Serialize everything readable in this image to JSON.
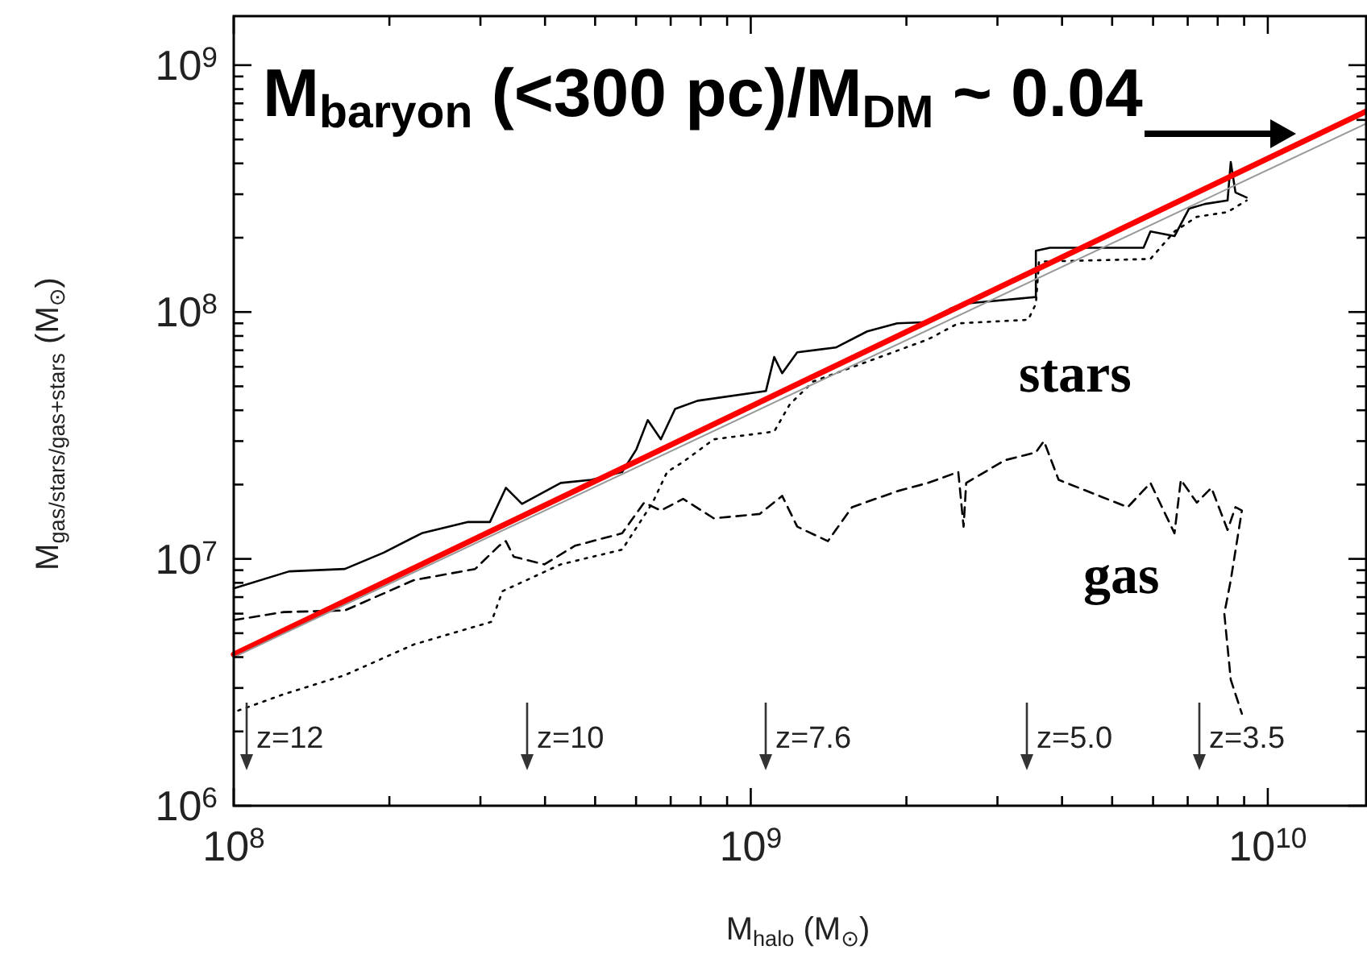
{
  "chart_data": {
    "type": "line",
    "xlabel": "M$_{halo}$ (M$_{⊙}$)",
    "ylabel": "M$_{gas/stars/gas+stars}$ (M$_{⊙}$)",
    "log": "xy",
    "grid": false,
    "marker": "none",
    "xlim": [
      100000000.0,
      15500000000.0
    ],
    "ylim": [
      1000000.0,
      1580000000.0
    ],
    "xticks": [
      {
        "value": 100000000.0,
        "label": "10$^{8}$"
      },
      {
        "value": 200000000.0,
        "label": null
      },
      {
        "value": 300000000.0,
        "label": null
      },
      {
        "value": 400000000.0,
        "label": null
      },
      {
        "value": 500000000.0,
        "label": null
      },
      {
        "value": 600000000.0,
        "label": null
      },
      {
        "value": 700000000.0,
        "label": null
      },
      {
        "value": 800000000.0,
        "label": null
      },
      {
        "value": 900000000.0,
        "label": null
      },
      {
        "value": 1000000000.0,
        "label": "10$^{9}$"
      },
      {
        "value": 2000000000.0,
        "label": null
      },
      {
        "value": 3000000000.0,
        "label": null
      },
      {
        "value": 4000000000.0,
        "label": null
      },
      {
        "value": 5000000000.0,
        "label": null
      },
      {
        "value": 6000000000.0,
        "label": null
      },
      {
        "value": 7000000000.0,
        "label": null
      },
      {
        "value": 8000000000.0,
        "label": null
      },
      {
        "value": 9000000000.0,
        "label": null
      },
      {
        "value": 10000000000.0,
        "label": "10$^{10}$"
      }
    ],
    "yticks": [
      {
        "value": 1000000.0,
        "label": "10$^{6}$"
      },
      {
        "value": 2000000.0,
        "label": null
      },
      {
        "value": 3000000.0,
        "label": null
      },
      {
        "value": 4000000.0,
        "label": null
      },
      {
        "value": 5000000.0,
        "label": null
      },
      {
        "value": 6000000.0,
        "label": null
      },
      {
        "value": 7000000.0,
        "label": null
      },
      {
        "value": 8000000.0,
        "label": null
      },
      {
        "value": 9000000.0,
        "label": null
      },
      {
        "value": 10000000.0,
        "label": "10$^{7}$"
      },
      {
        "value": 20000000.0,
        "label": null
      },
      {
        "value": 30000000.0,
        "label": null
      },
      {
        "value": 40000000.0,
        "label": null
      },
      {
        "value": 50000000.0,
        "label": null
      },
      {
        "value": 60000000.0,
        "label": null
      },
      {
        "value": 70000000.0,
        "label": null
      },
      {
        "value": 80000000.0,
        "label": null
      },
      {
        "value": 90000000.0,
        "label": null
      },
      {
        "value": 100000000.0,
        "label": "10$^{8}$"
      },
      {
        "value": 200000000.0,
        "label": null
      },
      {
        "value": 300000000.0,
        "label": null
      },
      {
        "value": 400000000.0,
        "label": null
      },
      {
        "value": 500000000.0,
        "label": null
      },
      {
        "value": 600000000.0,
        "label": null
      },
      {
        "value": 700000000.0,
        "label": null
      },
      {
        "value": 800000000.0,
        "label": null
      },
      {
        "value": 900000000.0,
        "label": null
      },
      {
        "value": 1000000000.0,
        "label": "10$^{9}$"
      }
    ],
    "series": [
      {
        "color": "#000000",
        "line_style": "solid",
        "x": [
          100000000.0,
          128000000.0,
          164000000.0,
          195000000.0,
          231000000.0,
          283000000.0,
          313000000.0,
          336000000.0,
          361000000.0,
          429000000.0,
          492000000.0,
          564000000.0,
          601000000.0,
          632000000.0,
          670000000.0,
          714000000.0,
          789000000.0,
          1070000000.0,
          1110000000.0,
          1150000000.0,
          1230000000.0,
          1460000000.0,
          1680000000.0,
          1920000000.0,
          2200000000.0,
          2430000000.0,
          2580000000.0,
          3560000000.0,
          3560000000.0,
          3790000000.0,
          5750000000.0,
          5930000000.0,
          6600000000.0,
          7040000000.0,
          7560000000.0,
          8360000000.0,
          8480000000.0,
          8660000000.0,
          9100000000.0
        ],
        "values": [
          7600000.0,
          8900000.0,
          9100000.0,
          10600000.0,
          12700000.0,
          14100000.0,
          14100000.0,
          19400000.0,
          16700000.0,
          20300000.0,
          20900000.0,
          22500000.0,
          27800000.0,
          36500000.0,
          30500000.0,
          40500000.0,
          43700000.0,
          47900000.0,
          65700000.0,
          56500000.0,
          68700000.0,
          71800000.0,
          83500000.0,
          90000000.0,
          91000000.0,
          103000000.0,
          108000000.0,
          115000000.0,
          177000000.0,
          182000000.0,
          182000000.0,
          212000000.0,
          203000000.0,
          262000000.0,
          274000000.0,
          283000000.0,
          405000000.0,
          305000000.0,
          291000000.0
        ]
      },
      {
        "name": "stars",
        "color": "#000000",
        "line_style": "dotted",
        "x": [
          102000000.0,
          125000000.0,
          164000000.0,
          223000000.0,
          315000000.0,
          331000000.0,
          429000000.0,
          564000000.0,
          646000000.0,
          689000000.0,
          740000000.0,
          848000000.0,
          1110000000.0,
          1190000000.0,
          1320000000.0,
          2200000000.0,
          2520000000.0,
          3440000000.0,
          3560000000.0,
          3610000000.0,
          5930000000.0,
          6600000000.0,
          7290000000.0,
          8360000000.0,
          9100000000.0
        ],
        "values": [
          2430000.0,
          2830000.0,
          3380000.0,
          4500000.0,
          5560000.0,
          7400000.0,
          9500000.0,
          10900000.0,
          16900000.0,
          22500000.0,
          24700000.0,
          30500000.0,
          32800000.0,
          42300000.0,
          52300000.0,
          77400000.0,
          90000000.0,
          93000000.0,
          108000000.0,
          160000000.0,
          164000000.0,
          212000000.0,
          243000000.0,
          254000000.0,
          283000000.0
        ]
      },
      {
        "name": "gas",
        "color": "#000000",
        "line_style": "dashed",
        "x": [
          100000000.0,
          125000000.0,
          164000000.0,
          223000000.0,
          293000000.0,
          326000000.0,
          336000000.0,
          348000000.0,
          399000000.0,
          457000000.0,
          564000000.0,
          622000000.0,
          670000000.0,
          740000000.0,
          848000000.0,
          1040000000.0,
          1150000000.0,
          1230000000.0,
          1410000000.0,
          1570000000.0,
          1920000000.0,
          2200000000.0,
          2520000000.0,
          2580000000.0,
          2610000000.0,
          3100000000.0,
          3560000000.0,
          3690000000.0,
          3940000000.0,
          5360000000.0,
          5930000000.0,
          6600000000.0,
          6790000000.0,
          7290000000.0,
          7780000000.0,
          8360000000.0,
          8660000000.0,
          8910000000.0,
          8480000000.0,
          8240000000.0,
          8480000000.0,
          8910000000.0
        ],
        "values": [
          5650000.0,
          6090000.0,
          6180000.0,
          8200000.0,
          9100000.0,
          11300000.0,
          11800000.0,
          10200000.0,
          9500000.0,
          11300000.0,
          12700000.0,
          16900000.0,
          15700000.0,
          17500000.0,
          14600000.0,
          15200000.0,
          18000000.0,
          13500000.0,
          11800000.0,
          16200000.0,
          18800000.0,
          20300000.0,
          22500000.0,
          13500000.0,
          20300000.0,
          25100000.0,
          27000000.0,
          30000000.0,
          20900000.0,
          16200000.0,
          20300000.0,
          12700000.0,
          20900000.0,
          16900000.0,
          19400000.0,
          13100000.0,
          16200000.0,
          15700000.0,
          8200000.0,
          6000000.0,
          3240000.0,
          2360000.0
        ]
      },
      {
        "color": "#ff0000",
        "line_style": "solid",
        "x": [
          100000000.0,
          15500000000.0
        ],
        "values": [
          4100000.0,
          650000000.0
        ]
      },
      {
        "color": "#999999",
        "line_style": "solid",
        "x": [
          100000000.0,
          15500000000.0
        ],
        "values": [
          4000000.0,
          580000000.0
        ]
      }
    ],
    "annotations": [
      "M$_{baryon}$ (<300 pc)/M$_{DM}$ ~ 0.04",
      "z=12",
      "z=10",
      "z=7.6",
      "z=5.0",
      "z=3.5"
    ]
  }
}
